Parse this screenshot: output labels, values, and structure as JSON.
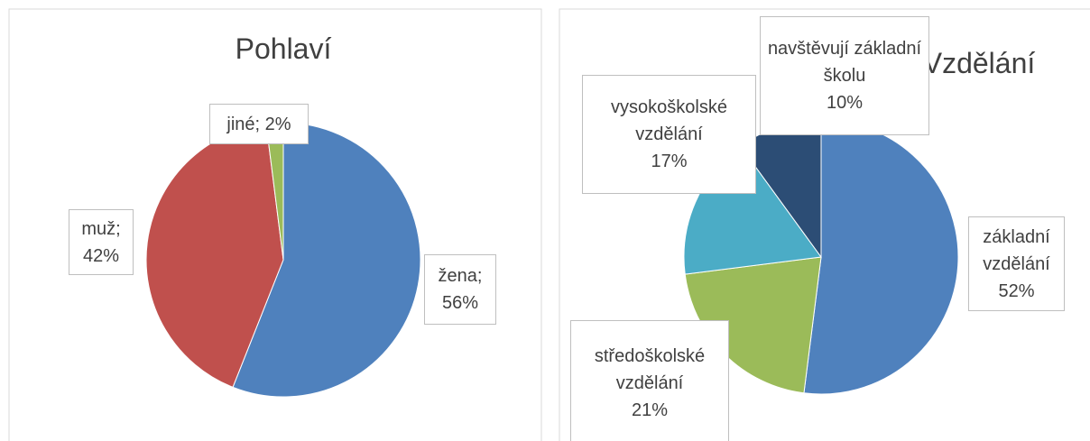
{
  "chart_data": [
    {
      "type": "pie",
      "title": "Pohlaví",
      "label_separator": ";",
      "categories": [
        "žena",
        "muž",
        "jiné"
      ],
      "values": [
        56,
        42,
        2
      ],
      "value_labels": [
        "56%",
        "42%",
        "2%"
      ],
      "colors": [
        "#4f81bd",
        "#c0504d",
        "#9bbb59"
      ]
    },
    {
      "type": "pie",
      "title": "Vzdělání",
      "categories": [
        "základní vzdělání",
        "středoškolské vzdělání",
        "vysokoškolské vzdělání",
        "navštěvují základní školu"
      ],
      "values": [
        52,
        21,
        17,
        10
      ],
      "value_labels": [
        "52%",
        "21%",
        "17%",
        "10%"
      ],
      "colors": [
        "#4f81bd",
        "#9bbb59",
        "#4bacc6",
        "#2c4d75"
      ]
    }
  ]
}
